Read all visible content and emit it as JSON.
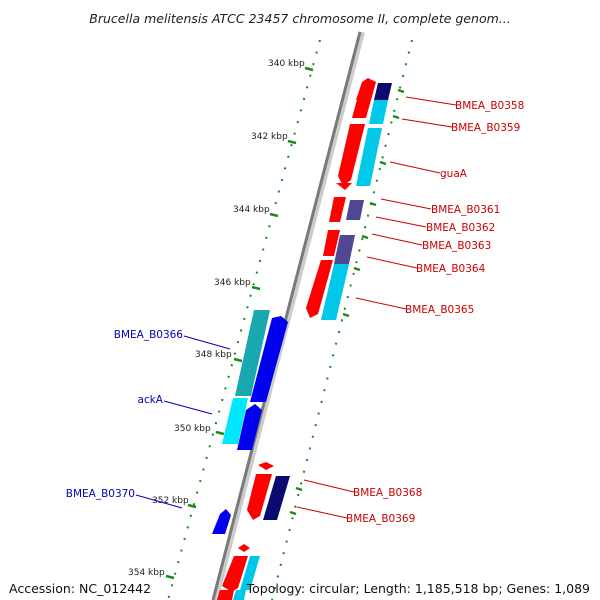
{
  "title": "Brucella melitensis ATCC 23457 chromosome II, complete genom...",
  "footer": {
    "accession": "Accession: NC_012442",
    "summary": "Topology: circular; Length: 1,185,518 bp; Genes: 1,089"
  },
  "ticks": [
    {
      "label": "340 kbp"
    },
    {
      "label": "342 kbp"
    },
    {
      "label": "344 kbp"
    },
    {
      "label": "346 kbp"
    },
    {
      "label": "348 kbp"
    },
    {
      "label": "350 kbp"
    },
    {
      "label": "352 kbp"
    },
    {
      "label": "354 kbp"
    }
  ],
  "forward_labels": [
    {
      "name": "BMEA_B0358"
    },
    {
      "name": "BMEA_B0359"
    },
    {
      "name": "guaA"
    },
    {
      "name": "BMEA_B0361"
    },
    {
      "name": "BMEA_B0362"
    },
    {
      "name": "BMEA_B0363"
    },
    {
      "name": "BMEA_B0364"
    },
    {
      "name": "BMEA_B0365"
    },
    {
      "name": "BMEA_B0368"
    },
    {
      "name": "BMEA_B0369"
    }
  ],
  "reverse_labels": [
    {
      "name": "BMEA_B0366"
    },
    {
      "name": "ackA"
    },
    {
      "name": "BMEA_B0370"
    }
  ],
  "colors": {
    "forward_label": "#cc0000",
    "reverse_label": "#0000bb",
    "forward_gene": "#ff0000",
    "reverse_gene": "#0000ee",
    "cds_cyan": "#00c8e8",
    "cds_navy": "#0a0a70",
    "cds_slate": "#504890",
    "cds_teal": "#1aa8b0",
    "backbone": "#888888",
    "tick": "#1a8a1a"
  }
}
